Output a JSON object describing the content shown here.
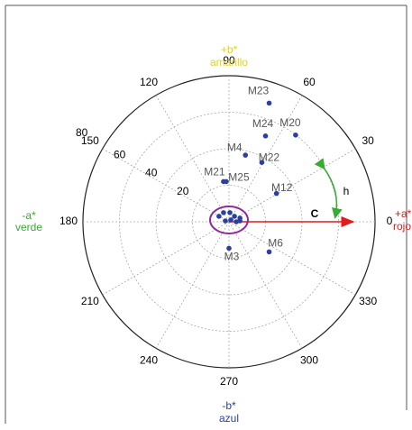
{
  "chart_data": {
    "type": "polar",
    "rlim": [
      0,
      80
    ],
    "rticks": [
      20,
      40,
      60,
      80
    ],
    "thetaticks": [
      0,
      30,
      60,
      90,
      120,
      150,
      180,
      210,
      240,
      270,
      300,
      330
    ],
    "point_color": "#2a3f9e",
    "pos_a_symbol": "+a*",
    "pos_a_name": "rojo",
    "neg_a_symbol": "-a*",
    "neg_a_name": "verde",
    "pos_b_symbol": "+b*",
    "pos_b_name": "amarillo",
    "neg_b_symbol": "-b*",
    "neg_b_name": "azul",
    "chroma_label": "C",
    "hue_label": "h",
    "points": [
      {
        "label": "M23",
        "a": 22,
        "b": 65
      },
      {
        "label": "M24",
        "a": 20,
        "b": 47
      },
      {
        "label": "M20",
        "a": 36.5,
        "b": 47.5
      },
      {
        "label": "M4",
        "a": 9,
        "b": 36.5
      },
      {
        "label": "M22",
        "a": 18,
        "b": 32.5
      },
      {
        "label": "M21",
        "a": -3,
        "b": 22
      },
      {
        "label": "M25",
        "a": -1.5,
        "b": 22
      },
      {
        "label": "M12",
        "a": 26,
        "b": 15.5
      },
      {
        "label": "M6",
        "a": 22,
        "b": -16.5
      },
      {
        "label": "M3",
        "a": 0,
        "b": -14.5
      },
      {
        "a": -5.5,
        "b": 3
      },
      {
        "a": -3,
        "b": 5
      },
      {
        "a": 0.5,
        "b": 5
      },
      {
        "a": 3,
        "b": 3
      },
      {
        "a": 6,
        "b": 2
      },
      {
        "a": -2,
        "b": 0.5
      },
      {
        "a": 1,
        "b": 1
      },
      {
        "a": 4,
        "b": 0
      },
      {
        "a": 6,
        "b": 0.5
      }
    ]
  }
}
